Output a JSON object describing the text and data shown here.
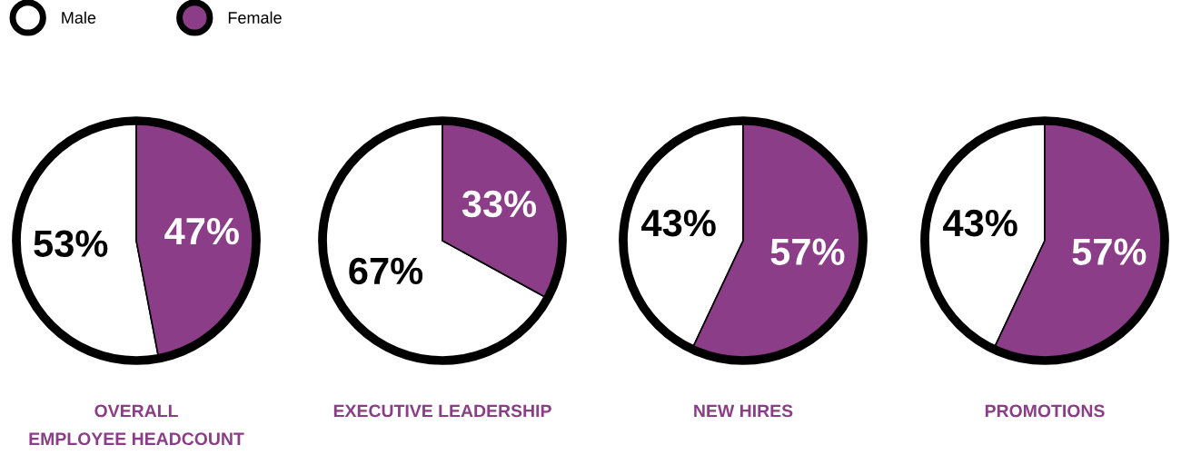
{
  "chart_data": [
    {
      "type": "pie",
      "title": "OVERALL\nEMPLOYEE HEADCOUNT",
      "categories": [
        "Male",
        "Female"
      ],
      "values": [
        53,
        47
      ],
      "value_labels": [
        "53%",
        "47%"
      ],
      "colors": [
        "#ffffff",
        "#8b3d88"
      ],
      "legend": "top"
    },
    {
      "type": "pie",
      "title": "EXECUTIVE LEADERSHIP",
      "categories": [
        null,
        null
      ],
      "values": [
        67,
        33
      ],
      "value_labels": [
        "67%",
        "33%"
      ],
      "colors": [
        "#ffffff",
        "#8b3d88"
      ]
    },
    {
      "type": "pie",
      "title": "NEW HIRES",
      "categories": [
        null,
        null
      ],
      "values": [
        43,
        57
      ],
      "value_labels": [
        "43%",
        "57%"
      ],
      "colors": [
        "#ffffff",
        "#8b3d88"
      ]
    },
    {
      "type": "pie",
      "title": "PROMOTIONS",
      "categories": [
        null,
        null
      ],
      "values": [
        43,
        57
      ],
      "value_labels": [
        "43%",
        "57%"
      ],
      "colors": [
        "#ffffff",
        "#8b3d88"
      ]
    }
  ]
}
